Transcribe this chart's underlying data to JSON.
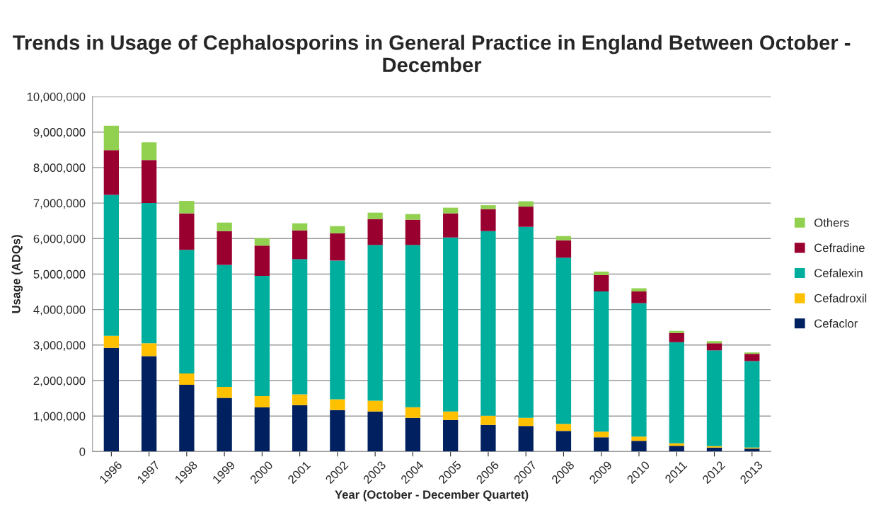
{
  "chart_data": {
    "type": "bar",
    "stacked": true,
    "title": "Trends in Usage of Cephalosporins in General Practice in England Between October - December",
    "xlabel": "Year (October - December Quartet)",
    "ylabel": "Usage (ADQs)",
    "categories": [
      "1996",
      "1997",
      "1998",
      "1999",
      "2000",
      "2001",
      "2002",
      "2003",
      "2004",
      "2005",
      "2006",
      "2007",
      "2008",
      "2009",
      "2010",
      "2011",
      "2012",
      "2013"
    ],
    "series": [
      {
        "name": "Cefaclor",
        "color": "#002060",
        "values": [
          2920000,
          2690000,
          1880000,
          1510000,
          1250000,
          1310000,
          1170000,
          1130000,
          950000,
          890000,
          750000,
          720000,
          580000,
          400000,
          300000,
          160000,
          110000,
          80000
        ]
      },
      {
        "name": "Cefadroxil",
        "color": "#ffc000",
        "values": [
          340000,
          360000,
          320000,
          310000,
          310000,
          300000,
          300000,
          300000,
          300000,
          240000,
          260000,
          230000,
          200000,
          160000,
          120000,
          70000,
          40000,
          30000
        ]
      },
      {
        "name": "Cefalexin",
        "color": "#00ae9e",
        "values": [
          3970000,
          3950000,
          3480000,
          3440000,
          3390000,
          3810000,
          3910000,
          4390000,
          4570000,
          4900000,
          5200000,
          5380000,
          4680000,
          3950000,
          3760000,
          2850000,
          2700000,
          2440000
        ]
      },
      {
        "name": "Cefradine",
        "color": "#990030",
        "values": [
          1260000,
          1210000,
          1030000,
          950000,
          850000,
          810000,
          770000,
          730000,
          710000,
          680000,
          620000,
          570000,
          490000,
          460000,
          330000,
          260000,
          200000,
          200000
        ]
      },
      {
        "name": "Others",
        "color": "#92d050",
        "values": [
          690000,
          500000,
          350000,
          240000,
          210000,
          200000,
          200000,
          180000,
          160000,
          160000,
          110000,
          150000,
          120000,
          100000,
          90000,
          60000,
          60000,
          40000
        ]
      }
    ],
    "ylim": [
      0,
      10000000
    ],
    "yticks": [
      {
        "value": 0,
        "label": "0"
      },
      {
        "value": 1000000,
        "label": "1,000,000"
      },
      {
        "value": 2000000,
        "label": "2,000,000"
      },
      {
        "value": 3000000,
        "label": "3,000,000"
      },
      {
        "value": 4000000,
        "label": "4,000,000"
      },
      {
        "value": 5000000,
        "label": "5,000,000"
      },
      {
        "value": 6000000,
        "label": "6,000,000"
      },
      {
        "value": 7000000,
        "label": "7,000,000"
      },
      {
        "value": 8000000,
        "label": "8,000,000"
      },
      {
        "value": 9000000,
        "label": "9,000,000"
      },
      {
        "value": 10000000,
        "label": "10,000,000"
      }
    ],
    "grid": "y",
    "legend": "right"
  }
}
